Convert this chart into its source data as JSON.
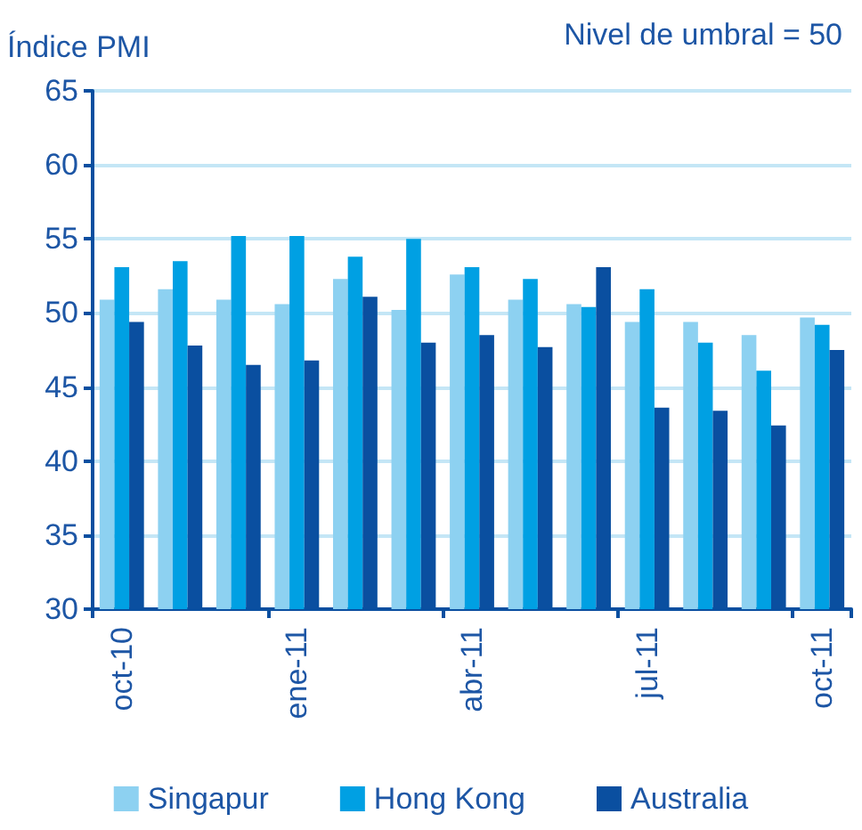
{
  "chart_data": {
    "type": "bar",
    "ylabel": "Índice PMI",
    "annotations": [
      "Nivel de umbral = 50"
    ],
    "categories": [
      "oct-10",
      null,
      null,
      "ene-11",
      null,
      null,
      "abr-11",
      null,
      null,
      "jul-11",
      null,
      null,
      "oct-11"
    ],
    "series": [
      {
        "name": "Singapur",
        "color": "#8dd1f1",
        "values": [
          50.9,
          51.6,
          50.9,
          50.6,
          52.3,
          50.2,
          52.6,
          50.9,
          50.6,
          49.4,
          49.4,
          48.5,
          49.7
        ]
      },
      {
        "name": "Hong Kong",
        "color": "#00a0e3",
        "values": [
          53.1,
          53.5,
          55.2,
          55.2,
          53.8,
          55.0,
          53.1,
          52.3,
          50.4,
          51.6,
          48.0,
          46.1,
          49.2
        ]
      },
      {
        "name": "Australia",
        "color": "#0a4fa0",
        "values": [
          49.4,
          47.8,
          46.5,
          46.8,
          51.1,
          48.0,
          48.5,
          47.7,
          53.1,
          43.6,
          43.4,
          42.4,
          47.5
        ]
      }
    ],
    "ylim": [
      30,
      65
    ],
    "yticks": [
      30,
      35,
      40,
      45,
      50,
      55,
      60,
      65
    ],
    "grid": "y",
    "legend": "bottom"
  }
}
